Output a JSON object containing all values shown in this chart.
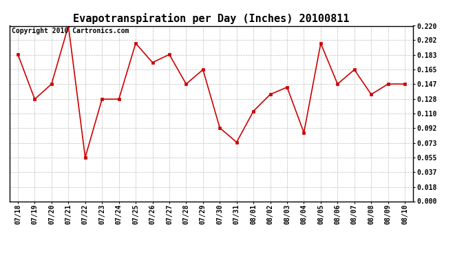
{
  "title": "Evapotranspiration per Day (Inches) 20100811",
  "copyright_text": "Copyright 2010 Cartronics.com",
  "x_labels": [
    "07/18",
    "07/19",
    "07/20",
    "07/21",
    "07/22",
    "07/23",
    "07/24",
    "07/25",
    "07/26",
    "07/27",
    "07/28",
    "07/29",
    "07/30",
    "07/31",
    "08/01",
    "08/02",
    "08/03",
    "08/04",
    "08/05",
    "08/06",
    "08/07",
    "08/08",
    "08/09",
    "08/10"
  ],
  "y_values": [
    0.184,
    0.128,
    0.147,
    0.22,
    0.055,
    0.128,
    0.128,
    0.198,
    0.174,
    0.184,
    0.147,
    0.165,
    0.092,
    0.074,
    0.113,
    0.134,
    0.143,
    0.086,
    0.198,
    0.147,
    0.165,
    0.134,
    0.147,
    0.147
  ],
  "line_color": "#cc0000",
  "marker": "s",
  "marker_size": 3,
  "background_color": "#ffffff",
  "grid_color": "#aaaaaa",
  "y_ticks": [
    0.0,
    0.018,
    0.037,
    0.055,
    0.073,
    0.092,
    0.11,
    0.128,
    0.147,
    0.165,
    0.183,
    0.202,
    0.22
  ],
  "ylim": [
    0.0,
    0.22
  ],
  "title_fontsize": 11,
  "tick_fontsize": 7,
  "copyright_fontsize": 7
}
